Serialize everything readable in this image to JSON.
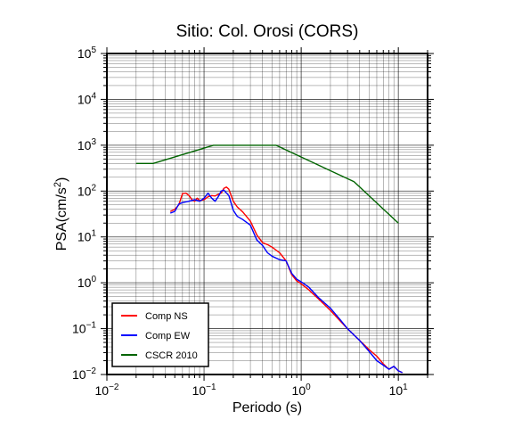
{
  "chart_data": {
    "type": "line",
    "title": "Sitio: Col. Orosi (CORS)",
    "xlabel": "Periodo (s)",
    "ylabel_main": "PSA(cm/s",
    "ylabel_sup": "2",
    "ylabel_close": ")",
    "xscale": "log",
    "yscale": "log",
    "xlim": [
      0.01,
      20
    ],
    "ylim": [
      0.01,
      100000
    ],
    "grid": true,
    "legend_position": "bottom-left",
    "x_ticks": [
      {
        "value": 0.01,
        "base": "10",
        "exp": "−2"
      },
      {
        "value": 0.1,
        "base": "10",
        "exp": "−1"
      },
      {
        "value": 1,
        "base": "10",
        "exp": "0"
      },
      {
        "value": 10,
        "base": "10",
        "exp": "1"
      }
    ],
    "y_ticks": [
      {
        "value": 0.01,
        "base": "10",
        "exp": "−2"
      },
      {
        "value": 0.1,
        "base": "10",
        "exp": "−1"
      },
      {
        "value": 1,
        "base": "10",
        "exp": "0"
      },
      {
        "value": 10,
        "base": "10",
        "exp": "1"
      },
      {
        "value": 100,
        "base": "10",
        "exp": "2"
      },
      {
        "value": 1000,
        "base": "10",
        "exp": "3"
      },
      {
        "value": 10000,
        "base": "10",
        "exp": "4"
      },
      {
        "value": 100000,
        "base": "10",
        "exp": "5"
      }
    ],
    "series": [
      {
        "name": "Comp NS",
        "color": "#ff0000",
        "x": [
          0.045,
          0.05,
          0.055,
          0.06,
          0.065,
          0.07,
          0.075,
          0.08,
          0.085,
          0.09,
          0.1,
          0.11,
          0.12,
          0.13,
          0.14,
          0.15,
          0.16,
          0.17,
          0.18,
          0.2,
          0.22,
          0.25,
          0.3,
          0.35,
          0.4,
          0.45,
          0.5,
          0.6,
          0.7,
          0.8,
          0.9,
          1.0,
          1.2,
          1.5,
          2,
          2.5,
          3,
          4,
          5,
          6,
          7,
          8,
          9,
          10,
          11
        ],
        "y": [
          36,
          40,
          50,
          88,
          90,
          80,
          65,
          60,
          70,
          62,
          65,
          75,
          80,
          78,
          85,
          90,
          115,
          122,
          110,
          60,
          45,
          35,
          22,
          11,
          7.5,
          6.8,
          6,
          4.5,
          3,
          1.5,
          1.1,
          0.95,
          0.7,
          0.45,
          0.25,
          0.15,
          0.1,
          0.055,
          0.035,
          0.025,
          0.017,
          0.013,
          0.015,
          0.012,
          0.011
        ]
      },
      {
        "name": "Comp EW",
        "color": "#0000ff",
        "x": [
          0.045,
          0.05,
          0.055,
          0.06,
          0.07,
          0.08,
          0.09,
          0.1,
          0.11,
          0.12,
          0.13,
          0.14,
          0.15,
          0.16,
          0.18,
          0.2,
          0.22,
          0.25,
          0.3,
          0.35,
          0.4,
          0.45,
          0.5,
          0.6,
          0.7,
          0.8,
          0.9,
          1.0,
          1.2,
          1.5,
          2,
          2.5,
          3,
          4,
          5,
          6,
          7,
          8,
          9,
          10,
          11
        ],
        "y": [
          33,
          36,
          52,
          56,
          60,
          65,
          60,
          70,
          90,
          70,
          60,
          75,
          100,
          105,
          80,
          38,
          28,
          24,
          18,
          8.5,
          6.5,
          4.5,
          3.8,
          3.2,
          3,
          1.6,
          1.2,
          1.05,
          0.8,
          0.48,
          0.28,
          0.16,
          0.1,
          0.055,
          0.032,
          0.02,
          0.016,
          0.013,
          0.015,
          0.012,
          0.011
        ]
      },
      {
        "name": "CSCR 2010",
        "color": "#006400",
        "x": [
          0.02,
          0.03,
          0.125,
          0.55,
          3.5,
          10
        ],
        "y": [
          400,
          400,
          1000,
          1000,
          160,
          20
        ]
      }
    ]
  }
}
